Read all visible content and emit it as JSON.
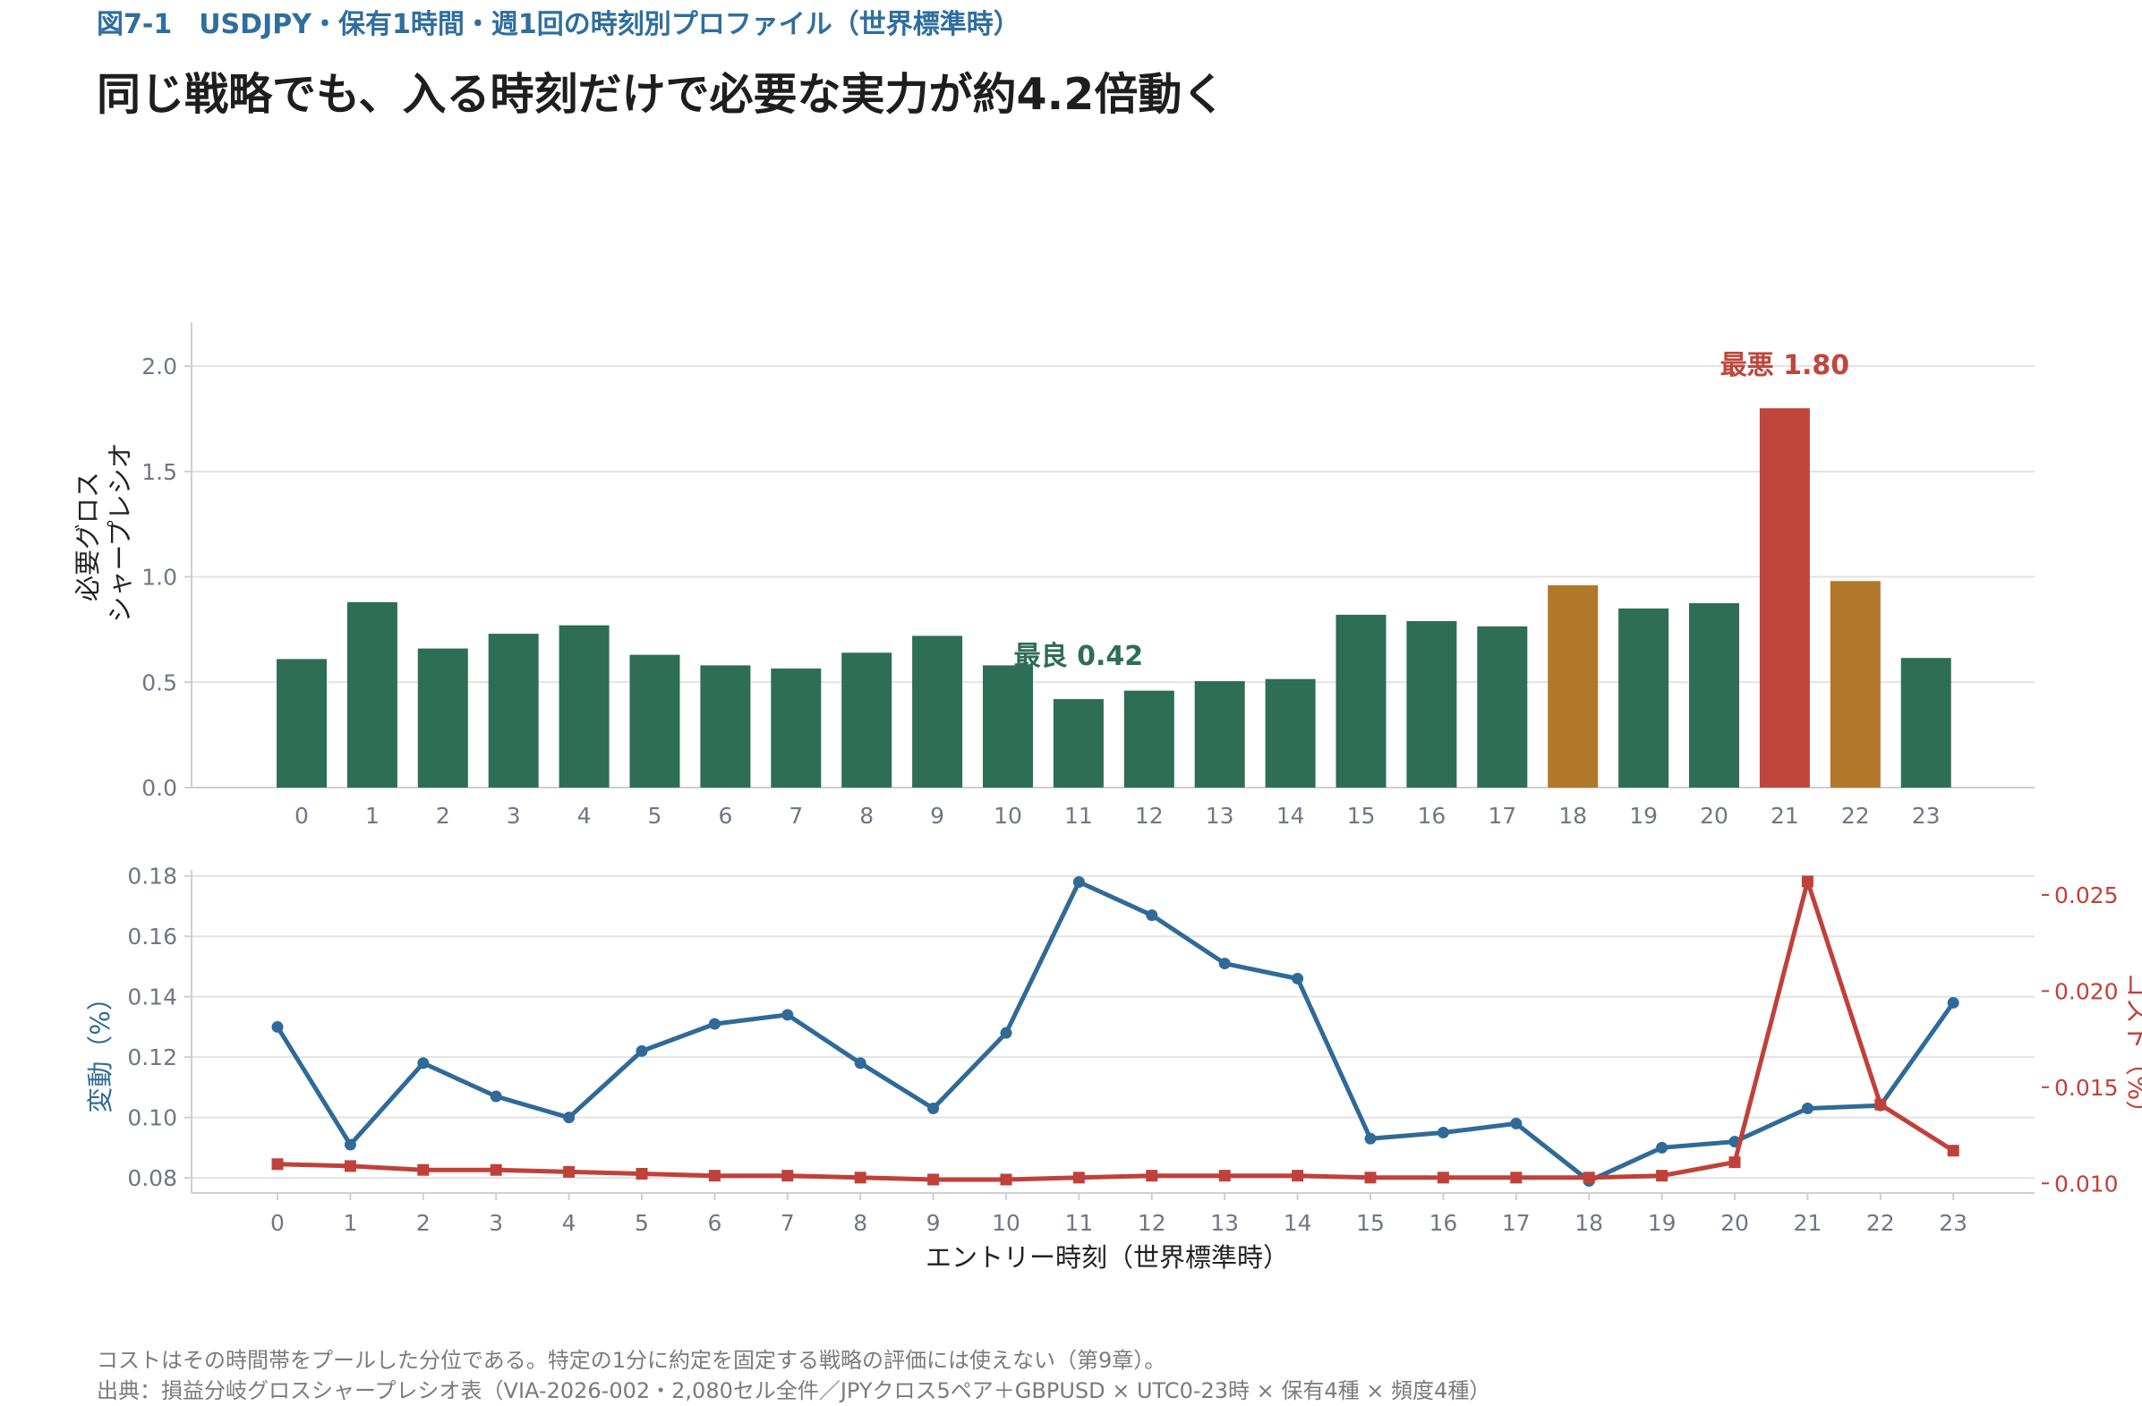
{
  "header": {
    "figure_label": "図7-1　USDJPY・保有1時間・週1回の時刻別プロファイル（世界標準時）",
    "headline": "同じ戦略でも、入る時刻だけで必要な実力が約4.2倍動く"
  },
  "footer": {
    "note": "コストはその時間帯をプールした分位である。特定の1分に約定を固定する戦略の評価には使えない（第9章）。",
    "source": "出典：損益分岐グロスシャープレシオ表（VIA-2026-002・2,080セル全件／JPYクロス5ペア＋GBPUSD × UTC0-23時 × 保有4種 × 頻度4種）"
  },
  "colors": {
    "green": "#2e6e55",
    "amber": "#b1772b",
    "red": "#c0463c",
    "blue": "#306a98",
    "line_red": "#c0413a",
    "grid": "#e2e2e2",
    "axis": "#cfcfcf"
  },
  "chart_data": [
    {
      "type": "bar",
      "ylabel_lines": [
        "必要グロス",
        "シャープレシオ"
      ],
      "categories": [
        "0",
        "1",
        "2",
        "3",
        "4",
        "5",
        "6",
        "7",
        "8",
        "9",
        "10",
        "11",
        "12",
        "13",
        "14",
        "15",
        "16",
        "17",
        "18",
        "19",
        "20",
        "21",
        "22",
        "23"
      ],
      "values": [
        0.61,
        0.88,
        0.66,
        0.73,
        0.77,
        0.63,
        0.58,
        0.565,
        0.64,
        0.72,
        0.58,
        0.42,
        0.46,
        0.505,
        0.515,
        0.82,
        0.79,
        0.765,
        0.96,
        0.85,
        0.875,
        1.8,
        0.98,
        0.615
      ],
      "bar_colors": [
        "green",
        "green",
        "green",
        "green",
        "green",
        "green",
        "green",
        "green",
        "green",
        "green",
        "green",
        "green",
        "green",
        "green",
        "green",
        "green",
        "green",
        "green",
        "amber",
        "green",
        "green",
        "red",
        "amber",
        "green"
      ],
      "ylim": [
        0,
        2.2
      ],
      "yticks": [
        "0.0",
        "0.5",
        "1.0",
        "1.5",
        "2.0"
      ],
      "grid": true,
      "annotations": [
        {
          "label": "最良 0.42",
          "index": 11,
          "color": "green"
        },
        {
          "label": "最悪 1.80",
          "index": 21,
          "color": "red"
        }
      ]
    },
    {
      "type": "line",
      "xlabel": "エントリー時刻（世界標準時）",
      "x": [
        "0",
        "1",
        "2",
        "3",
        "4",
        "5",
        "6",
        "7",
        "8",
        "9",
        "10",
        "11",
        "12",
        "13",
        "14",
        "15",
        "16",
        "17",
        "18",
        "19",
        "20",
        "21",
        "22",
        "23"
      ],
      "series": [
        {
          "axis": "left",
          "color": "blue",
          "marker": "circle",
          "values": [
            0.13,
            0.091,
            0.118,
            0.107,
            0.1,
            0.122,
            0.131,
            0.134,
            0.118,
            0.103,
            0.128,
            0.178,
            0.167,
            0.151,
            0.146,
            0.093,
            0.095,
            0.098,
            0.079,
            0.09,
            0.092,
            0.103,
            0.104,
            0.138
          ]
        },
        {
          "axis": "right",
          "color": "line_red",
          "marker": "square",
          "values": [
            0.011,
            0.0109,
            0.0107,
            0.0107,
            0.0106,
            0.0105,
            0.0104,
            0.0104,
            0.0103,
            0.0102,
            0.0102,
            0.0103,
            0.0104,
            0.0104,
            0.0104,
            0.0103,
            0.0103,
            0.0103,
            0.0103,
            0.0104,
            0.0111,
            0.0257,
            0.0141,
            0.0117
          ]
        }
      ],
      "ylabel_left": "変動（%）",
      "ylabel_right": "コスト（%）",
      "ylim_left": [
        0.075,
        0.182
      ],
      "yticks_left": [
        "0.08",
        "0.10",
        "0.12",
        "0.14",
        "0.16",
        "0.18"
      ],
      "ylim_right": [
        0.0095,
        0.0263
      ],
      "yticks_right": [
        "0.010",
        "0.015",
        "0.020",
        "0.025"
      ],
      "grid": true
    }
  ]
}
